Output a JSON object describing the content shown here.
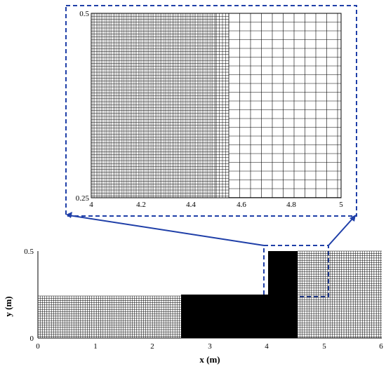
{
  "inset": {
    "x_ticks": [
      "4",
      "4.2",
      "4.4",
      "4.6",
      "4.8",
      "5"
    ],
    "y_ticks": [
      "0.25",
      "0.5"
    ]
  },
  "main": {
    "x_ticks": [
      "0",
      "1",
      "2",
      "3",
      "4",
      "5",
      "6"
    ],
    "y_ticks": [
      "0",
      "0.5"
    ],
    "xlabel": "x (m)",
    "ylabel": "y (m)"
  },
  "colors": {
    "callout": "#1f3fa8",
    "mesh": "#000000",
    "dense_mesh": "#000000"
  }
}
